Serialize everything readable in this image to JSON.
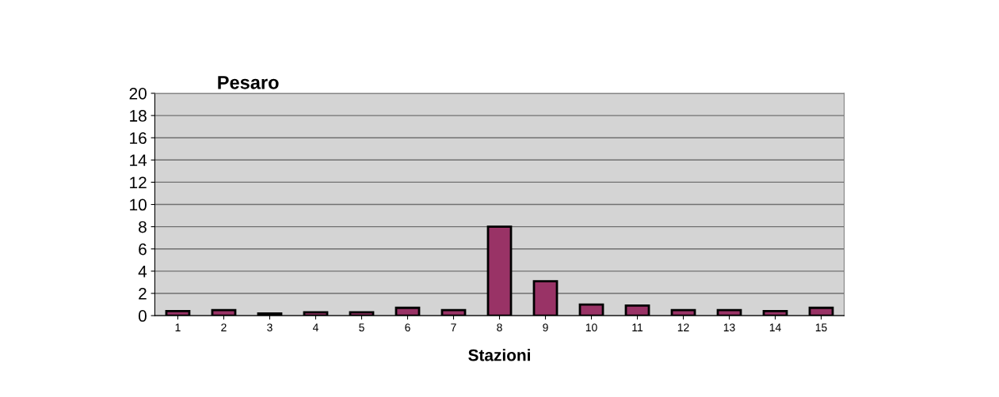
{
  "chart_data": {
    "type": "bar",
    "title": "Pesaro",
    "xlabel": "Stazioni",
    "categories": [
      "1",
      "2",
      "3",
      "4",
      "5",
      "6",
      "7",
      "8",
      "9",
      "10",
      "11",
      "12",
      "13",
      "14",
      "15"
    ],
    "values": [
      0.4,
      0.5,
      0.2,
      0.3,
      0.3,
      0.7,
      0.5,
      8,
      3.1,
      1,
      0.9,
      0.5,
      0.5,
      0.4,
      0.7
    ],
    "color": "#993366",
    "ylim": [
      0,
      20
    ],
    "yticks": [
      0,
      2,
      4,
      6,
      8,
      10,
      12,
      14,
      16,
      18,
      20
    ],
    "grid": "y"
  }
}
